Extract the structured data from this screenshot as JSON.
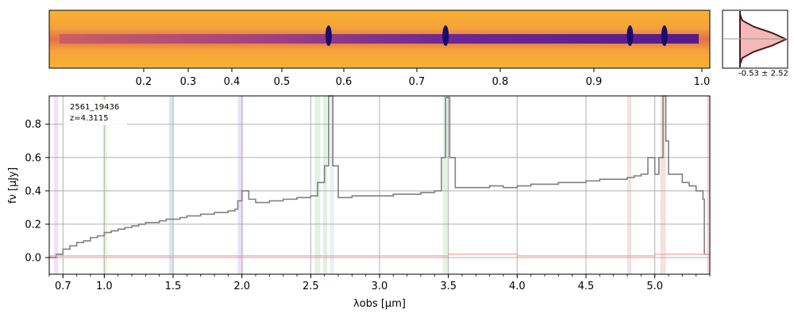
{
  "chart_data": [
    {
      "type": "heatmap",
      "name": "2d-spectrum",
      "colormap": "plasma",
      "upper_axis_ticks": [
        "0.2",
        "0.3",
        "0.4",
        "0.5",
        "0.6",
        "0.7",
        "0.8",
        "0.9",
        "1.0"
      ],
      "emission_x_obs_um": [
        2.63,
        3.48,
        4.82,
        5.07
      ]
    },
    {
      "type": "line",
      "name": "trace-profile",
      "annotation": "-0.53 ± 2.52",
      "profile": [
        0.0,
        0.05,
        0.3,
        0.7,
        1.0,
        0.7,
        0.3,
        0.05,
        0.0
      ],
      "colors": {
        "line": "#4a1a1a",
        "fill": "#f4b8b8"
      }
    },
    {
      "type": "line",
      "name": "1d-spectrum",
      "object_id": "2561_19436",
      "redshift_label": "z=4.3115",
      "xlabel": "λobs [μm]",
      "ylabel": "fν [μJy]",
      "xlim": [
        0.6,
        5.4
      ],
      "ylim": [
        -0.1,
        0.97
      ],
      "grid": true,
      "x_ticks": [
        "0.7",
        "1.0",
        "1.5",
        "2.0",
        "2.5",
        "3.0",
        "3.5",
        "4.0",
        "4.5",
        "5.0"
      ],
      "y_ticks": [
        "0.0",
        "0.2",
        "0.4",
        "0.6",
        "0.8"
      ],
      "series": [
        {
          "color": "#808080",
          "x": [
            0.6,
            0.65,
            0.7,
            0.75,
            0.8,
            0.85,
            0.9,
            0.95,
            1.0,
            1.05,
            1.1,
            1.15,
            1.2,
            1.25,
            1.3,
            1.35,
            1.4,
            1.45,
            1.5,
            1.55,
            1.6,
            1.65,
            1.7,
            1.75,
            1.8,
            1.85,
            1.9,
            1.95,
            1.97,
            2.0,
            2.05,
            2.1,
            2.2,
            2.3,
            2.4,
            2.5,
            2.55,
            2.6,
            2.63,
            2.66,
            2.7,
            2.8,
            2.9,
            3.0,
            3.1,
            3.2,
            3.3,
            3.4,
            3.45,
            3.48,
            3.51,
            3.55,
            3.6,
            3.7,
            3.8,
            3.9,
            4.0,
            4.1,
            4.2,
            4.3,
            4.4,
            4.5,
            4.6,
            4.7,
            4.8,
            4.85,
            4.9,
            4.95,
            5.0,
            5.03,
            5.06,
            5.08,
            5.1,
            5.15,
            5.2,
            5.25,
            5.3,
            5.33,
            5.35,
            5.36,
            5.4
          ],
          "y": [
            0.0,
            0.02,
            0.05,
            0.07,
            0.09,
            0.1,
            0.12,
            0.13,
            0.15,
            0.16,
            0.17,
            0.18,
            0.19,
            0.2,
            0.21,
            0.21,
            0.22,
            0.23,
            0.23,
            0.24,
            0.25,
            0.25,
            0.26,
            0.26,
            0.27,
            0.27,
            0.28,
            0.29,
            0.34,
            0.4,
            0.35,
            0.33,
            0.34,
            0.35,
            0.36,
            0.37,
            0.45,
            0.55,
            0.97,
            0.55,
            0.36,
            0.37,
            0.37,
            0.37,
            0.38,
            0.38,
            0.39,
            0.4,
            0.6,
            0.96,
            0.6,
            0.42,
            0.42,
            0.42,
            0.43,
            0.42,
            0.43,
            0.44,
            0.44,
            0.45,
            0.45,
            0.46,
            0.47,
            0.47,
            0.48,
            0.49,
            0.5,
            0.6,
            0.5,
            0.6,
            0.97,
            0.7,
            0.5,
            0.5,
            0.45,
            0.43,
            0.4,
            0.4,
            0.35,
            0.02,
            0.02
          ]
        },
        {
          "color": "#f2a0a0",
          "x": [
            0.6,
            1.0,
            2.0,
            3.0,
            3.4,
            3.5,
            4.0,
            4.5,
            5.0,
            5.1,
            5.4
          ],
          "y": [
            0.01,
            0.01,
            0.01,
            0.01,
            0.01,
            0.02,
            0.01,
            0.01,
            0.02,
            0.02,
            0.02
          ]
        }
      ],
      "bands": [
        {
          "x0": 0.635,
          "x1": 0.665,
          "color": "#e6c8f0"
        },
        {
          "x0": 0.99,
          "x1": 1.02,
          "color": "#d8e8c0"
        },
        {
          "x0": 1.47,
          "x1": 1.5,
          "color": "#c0d4ec"
        },
        {
          "x0": 1.97,
          "x1": 2.01,
          "color": "#dcc8ec"
        },
        {
          "x0": 2.53,
          "x1": 2.57,
          "color": "#cce8cc"
        },
        {
          "x0": 2.59,
          "x1": 2.62,
          "color": "#c6e6c6"
        },
        {
          "x0": 2.64,
          "x1": 2.67,
          "color": "#d6e6f2"
        },
        {
          "x0": 3.46,
          "x1": 3.5,
          "color": "#cce8cc"
        },
        {
          "x0": 4.8,
          "x1": 4.83,
          "color": "#ecc8c8"
        },
        {
          "x0": 5.04,
          "x1": 5.08,
          "color": "#ecc8c8"
        },
        {
          "x0": 5.38,
          "x1": 5.4,
          "color": "#f0b0b0"
        }
      ]
    }
  ]
}
